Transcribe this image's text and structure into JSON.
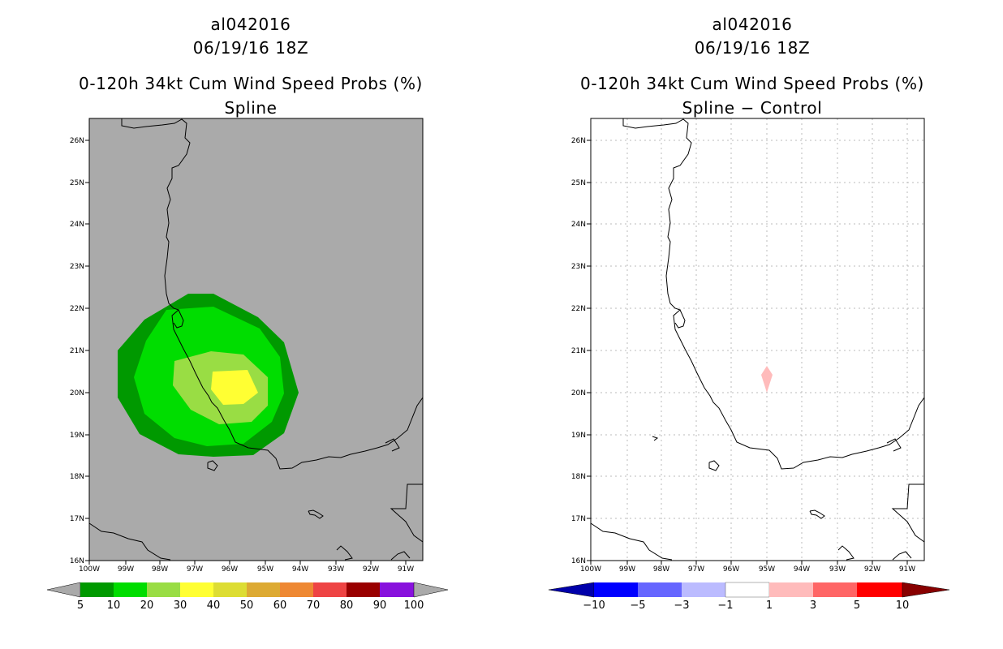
{
  "panels": {
    "left": {
      "storm_id": "al042016",
      "datetime": "06/19/16 18Z",
      "product": "0-120h 34kt Cum Wind Speed Probs (%)",
      "subtitle": "Spline",
      "background_color": "#aaaaaa",
      "x_tick_labels": [
        "100W",
        "99W",
        "98W",
        "97W",
        "96W",
        "95W",
        "94W",
        "93W",
        "92W",
        "91W"
      ],
      "y_tick_labels": [
        "16N",
        "17N",
        "18N",
        "19N",
        "20N",
        "21N",
        "22N",
        "23N",
        "24N",
        "25N",
        "26N"
      ],
      "colorbar": {
        "labels": [
          "5",
          "10",
          "20",
          "30",
          "40",
          "50",
          "60",
          "70",
          "80",
          "90",
          "100"
        ],
        "colors": [
          "#009900",
          "#00dd00",
          "#99dd44",
          "#ffff33",
          "#dddd33",
          "#ddaa33",
          "#ee8833",
          "#ee4444",
          "#990000",
          "#8811dd"
        ],
        "end_color": "#aaaaaa"
      }
    },
    "right": {
      "storm_id": "al042016",
      "datetime": "06/19/16 18Z",
      "product": "0-120h 34kt Cum Wind Speed Probs (%)",
      "subtitle": "Spline − Control",
      "background_color": "#ffffff",
      "x_tick_labels": [
        "100W",
        "99W",
        "98W",
        "97W",
        "96W",
        "95W",
        "94W",
        "93W",
        "92W",
        "91W"
      ],
      "y_tick_labels": [
        "16N",
        "17N",
        "18N",
        "19N",
        "20N",
        "21N",
        "22N",
        "23N",
        "24N",
        "25N",
        "26N"
      ],
      "colorbar": {
        "labels": [
          "−10",
          "−5",
          "−3",
          "−1",
          "1",
          "3",
          "5",
          "10"
        ],
        "colors": [
          "#0000ff",
          "#6666ff",
          "#bbbbff",
          "#ffffff",
          "#ffbbbb",
          "#ff6666",
          "#ff0000"
        ],
        "low_end_color": "#0000aa",
        "high_end_color": "#880000"
      }
    }
  }
}
